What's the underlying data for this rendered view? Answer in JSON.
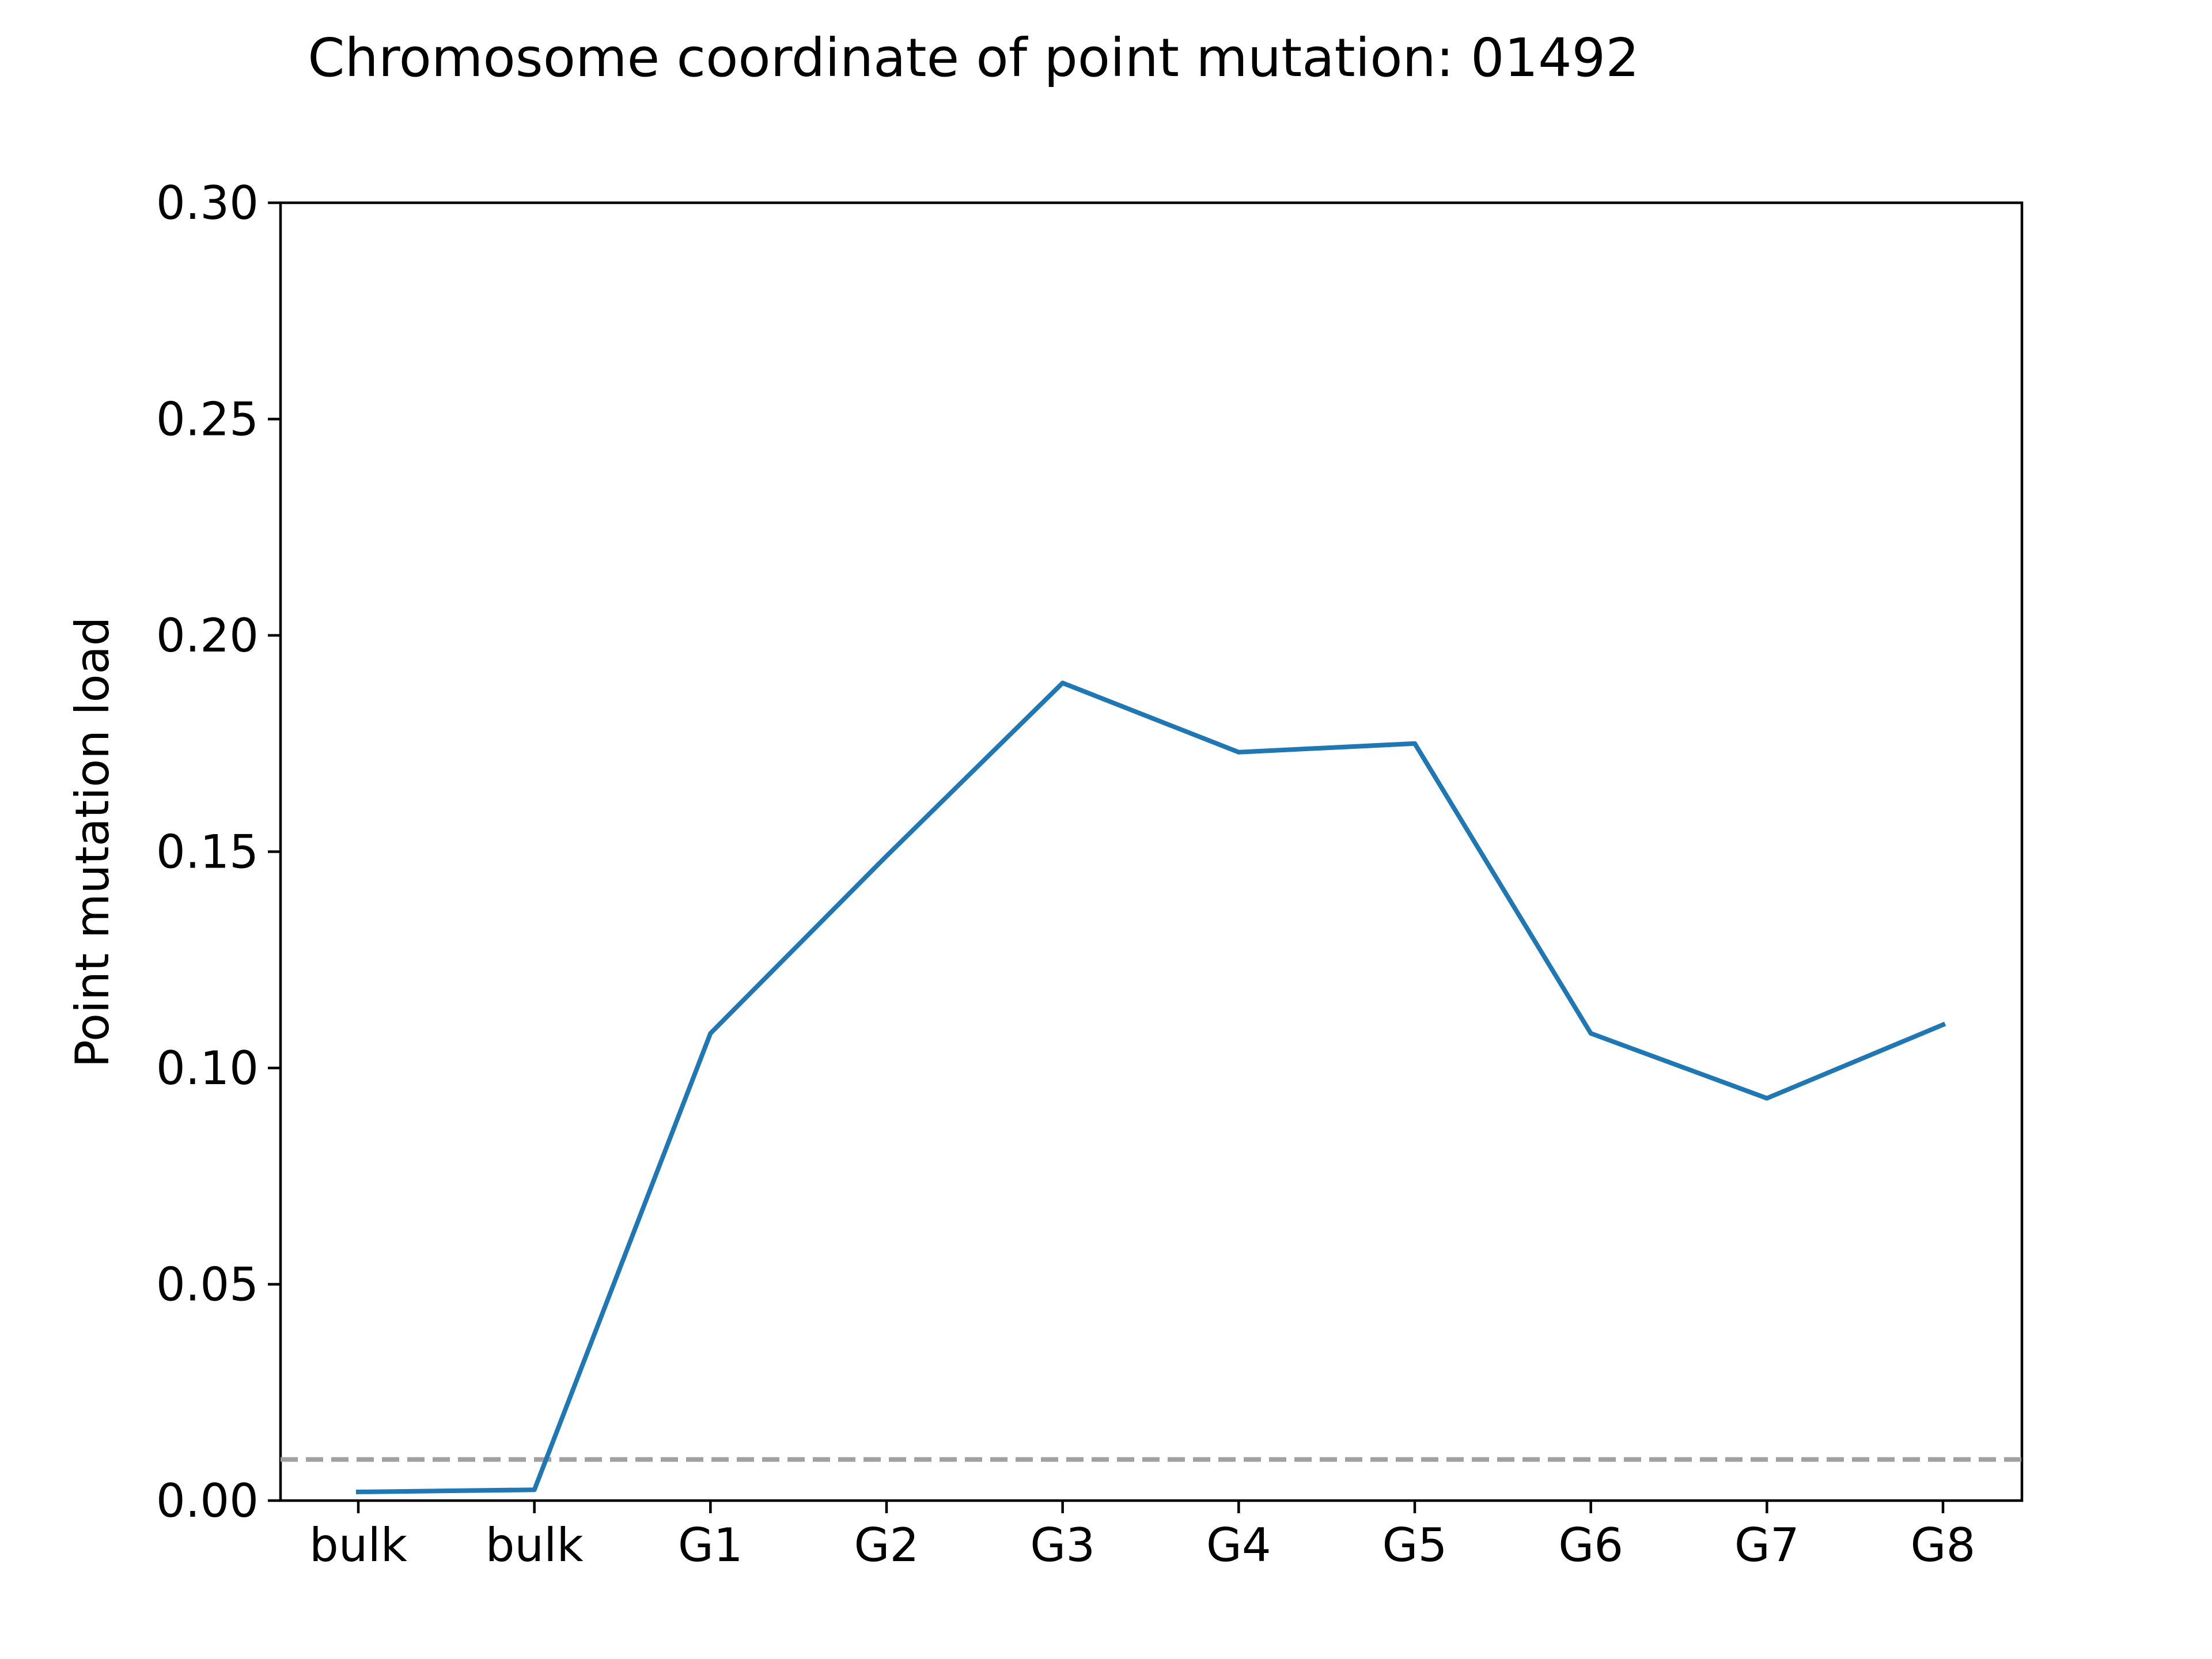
{
  "chart_data": {
    "type": "line",
    "title": "Chromosome coordinate of point mutation: 01492",
    "xlabel": "",
    "ylabel": "Point mutation load",
    "categories": [
      "bulk",
      "bulk",
      "G1",
      "G2",
      "G3",
      "G4",
      "G5",
      "G6",
      "G7",
      "G8"
    ],
    "series": [
      {
        "values": [
          0.002,
          0.0025,
          0.108,
          0.149,
          0.189,
          0.173,
          0.175,
          0.108,
          0.093,
          0.11
        ],
        "color": "#1f77b4"
      }
    ],
    "reference_line": {
      "y": 0.0095,
      "style": "dashed",
      "color": "#a0a0a0"
    },
    "ylim": [
      0,
      0.3
    ],
    "yticks": [
      "0.00",
      "0.05",
      "0.10",
      "0.15",
      "0.20",
      "0.25",
      "0.30"
    ],
    "grid": false,
    "legend": "none"
  }
}
